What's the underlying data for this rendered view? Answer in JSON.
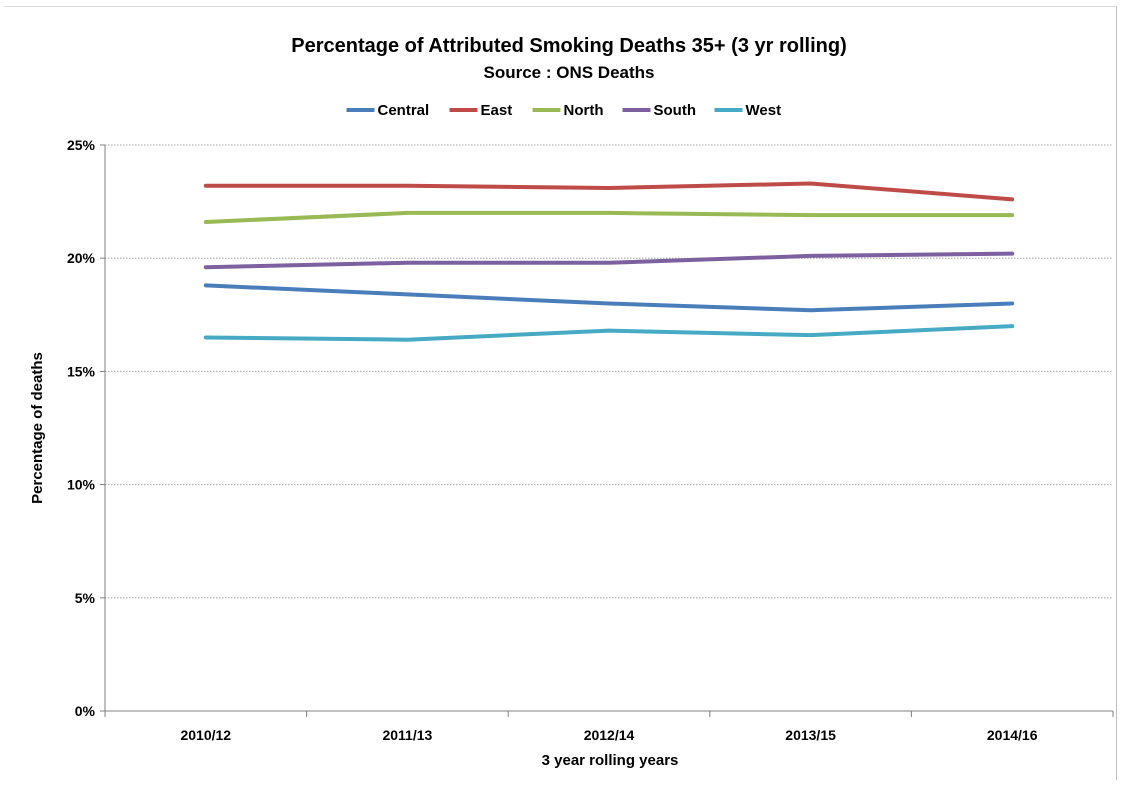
{
  "chart_data": {
    "type": "line",
    "title": "Percentage of Attributed Smoking Deaths 35+  (3 yr rolling)",
    "subtitle": "Source : ONS Deaths",
    "xlabel": "3 year rolling years",
    "ylabel": "Percentage of deaths",
    "categories": [
      "2010/12",
      "2011/13",
      "2012/14",
      "2013/15",
      "2014/16"
    ],
    "ylim": [
      0,
      25
    ],
    "yticks": [
      0,
      5,
      10,
      15,
      20,
      25
    ],
    "ytick_labels": [
      "0%",
      "5%",
      "10%",
      "15%",
      "20%",
      "25%"
    ],
    "grid": true,
    "legend_position": "top",
    "series": [
      {
        "name": "Central",
        "color": "#4a7ebb",
        "values": [
          18.8,
          18.4,
          18.0,
          17.7,
          18.0
        ]
      },
      {
        "name": "East",
        "color": "#be4b48",
        "values": [
          23.2,
          23.2,
          23.1,
          23.3,
          22.6
        ]
      },
      {
        "name": "North",
        "color": "#98b954",
        "values": [
          21.6,
          22.0,
          22.0,
          21.9,
          21.9
        ]
      },
      {
        "name": "South",
        "color": "#7d60a0",
        "values": [
          19.6,
          19.8,
          19.8,
          20.1,
          20.2
        ]
      },
      {
        "name": "West",
        "color": "#46aac5",
        "values": [
          16.5,
          16.4,
          16.8,
          16.6,
          17.0
        ]
      }
    ]
  }
}
